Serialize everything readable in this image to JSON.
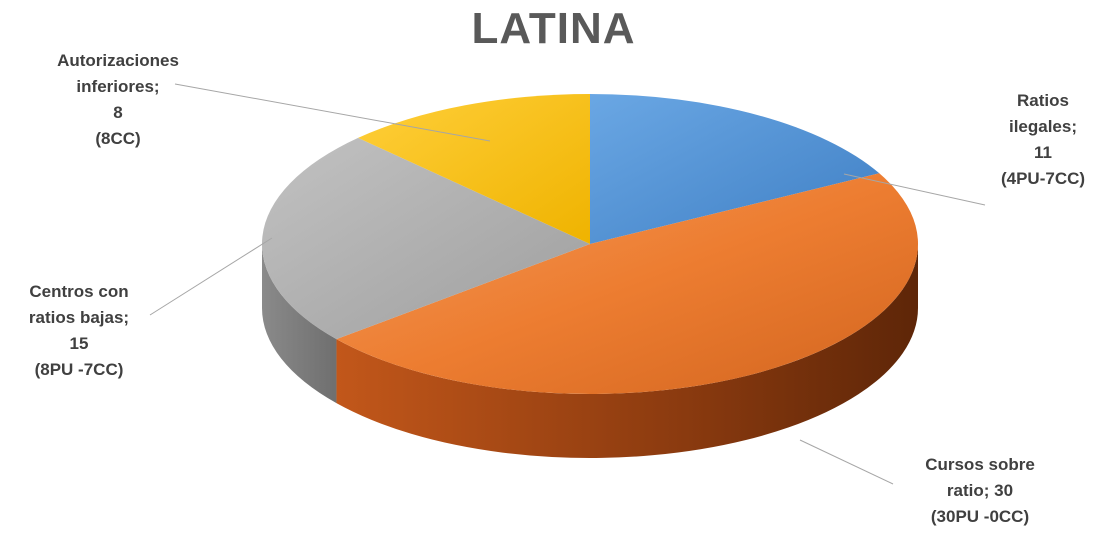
{
  "chart_data": {
    "type": "pie",
    "title": "LATINA",
    "categories": [
      "Ratios ilegales",
      "Cursos sobre ratio",
      "Centros con ratios bajas",
      "Autorizaciones inferiores"
    ],
    "values": [
      11,
      30,
      15,
      8
    ],
    "colors": [
      "#4a8fd6",
      "#ed7d31",
      "#a5a5a5",
      "#ffc000"
    ],
    "labels": [
      [
        "Ratios",
        "ilegales;",
        "11",
        "(4PU-7CC)"
      ],
      [
        "Cursos sobre",
        "ratio; 30",
        "(30PU -0CC)"
      ],
      [
        "Centros con",
        "ratios bajas;",
        "15",
        "(8PU -7CC)"
      ],
      [
        "Autorizaciones",
        "inferiores;",
        "8",
        "(8CC)"
      ]
    ],
    "legend": "none",
    "style": "3d"
  }
}
